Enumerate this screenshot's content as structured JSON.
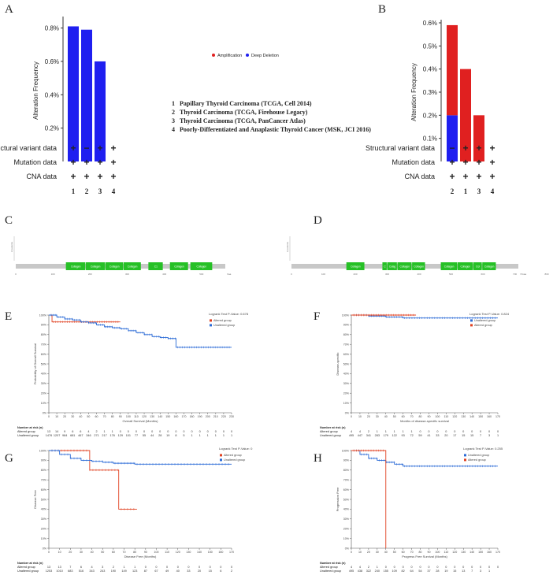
{
  "panel_labels": [
    "A",
    "B",
    "C",
    "D",
    "E",
    "F",
    "G",
    "H"
  ],
  "colors": {
    "amplification": "#e02020",
    "deep_deletion": "#1f1ff0",
    "altered": "#e04020",
    "unaltered": "#2a6ad6",
    "domain": "#26c026",
    "protein_bar": "#c8c8c8",
    "gridline": "#dddddd"
  },
  "legend_ab": {
    "amplification": "Amplification",
    "deep_deletion": "Deep Deletion"
  },
  "study_list": [
    {
      "num": "1",
      "name": "Papillary Thyroid Carcinoma (TCGA, Cell 2014)"
    },
    {
      "num": "2",
      "name": "Thyroid Carcinoma (TCGA, Firehouse Legacy)"
    },
    {
      "num": "3",
      "name": "Thyroid Carcinoma (TCGA, PanCancer Atlas)"
    },
    {
      "num": "4",
      "name": "Poorly-Differentiated and Anaplastic Thyroid Cancer (MSK, JCI 2016)"
    }
  ],
  "row_labels": [
    "Structural variant data",
    "Mutation data",
    "CNA data"
  ],
  "km_risk": {
    "title": "Number at risk (n)",
    "altered_label": "Altered group",
    "unaltered_label": "Unaltered group"
  },
  "chart_data": [
    {
      "id": "A",
      "type": "bar",
      "ylabel": "Alteration Frequency",
      "ylim": [
        0,
        0.85
      ],
      "yticks": [
        "0.2%",
        "0.4%",
        "0.6%",
        "0.8%"
      ],
      "categories": [
        "1",
        "2",
        "3",
        "4"
      ],
      "series": [
        {
          "name": "Amplification",
          "color": "#e02020",
          "values": [
            0,
            0,
            0,
            0
          ]
        },
        {
          "name": "Deep Deletion",
          "color": "#1f1ff0",
          "values": [
            0.81,
            0.79,
            0.6,
            0
          ]
        }
      ],
      "data_availability": [
        [
          "+",
          "−",
          "+",
          "+"
        ],
        [
          "+",
          "+",
          "+",
          "+"
        ],
        [
          "+",
          "+",
          "+",
          "+"
        ]
      ]
    },
    {
      "id": "B",
      "type": "bar",
      "ylabel": "Alteration Frequency",
      "ylim": [
        0,
        0.6
      ],
      "yticks": [
        "0.1%",
        "0.2%",
        "0.3%",
        "0.4%",
        "0.5%",
        "0.6%"
      ],
      "categories": [
        "2",
        "1",
        "3",
        "4"
      ],
      "series": [
        {
          "name": "Deep Deletion",
          "color": "#1f1ff0",
          "values": [
            0.2,
            0,
            0,
            0
          ]
        },
        {
          "name": "Amplification",
          "color": "#e02020",
          "values": [
            0.39,
            0.4,
            0.2,
            0
          ]
        }
      ],
      "data_availability": [
        [
          "−",
          "+",
          "+",
          "+"
        ],
        [
          "+",
          "+",
          "+",
          "+"
        ],
        [
          "+",
          "+",
          "+",
          "+"
        ]
      ]
    },
    {
      "id": "C",
      "type": "domain-map",
      "axis_ticks": [
        "0",
        "100",
        "200",
        "300",
        "400",
        "500"
      ],
      "axis_end_label": "Xaa",
      "length": 564,
      "ylabel": "# patients",
      "domains": [
        {
          "label": "Collagen",
          "start": 135,
          "end": 188
        },
        {
          "label": "Collagen",
          "start": 188,
          "end": 241
        },
        {
          "label": "Collagen",
          "start": 241,
          "end": 290
        },
        {
          "label": "Collagen",
          "start": 290,
          "end": 338
        },
        {
          "label": "C1",
          "start": 357,
          "end": 397
        },
        {
          "label": "Collagen",
          "start": 415,
          "end": 465
        },
        {
          "label": "Collagen",
          "start": 470,
          "end": 530
        }
      ]
    },
    {
      "id": "D",
      "type": "domain-map",
      "axis_ticks": [
        "0",
        "100",
        "200",
        "300",
        "400",
        "500",
        "600",
        "700",
        "800"
      ],
      "axis_end_label": "711aa",
      "length": 711,
      "ylabel": "# patients",
      "domains": [
        {
          "label": "Collagen",
          "start": 172,
          "end": 230
        },
        {
          "label": "C",
          "start": 285,
          "end": 300
        },
        {
          "label": "Colag",
          "start": 300,
          "end": 332
        },
        {
          "label": "Collagen",
          "start": 332,
          "end": 378
        },
        {
          "label": "Collagen",
          "start": 378,
          "end": 420
        },
        {
          "label": "Collagen",
          "start": 468,
          "end": 520
        },
        {
          "label": "Collagen",
          "start": 520,
          "end": 570
        },
        {
          "label": "Col",
          "start": 570,
          "end": 598
        },
        {
          "label": "Collagen",
          "start": 598,
          "end": 642
        }
      ]
    },
    {
      "id": "E",
      "type": "line",
      "xlabel": "Overall Survival (Months)",
      "ylabel": "Probability of Overall Survival",
      "p_value_text": "Logrank Test P-Value: 0.678",
      "xticks": [
        0,
        10,
        20,
        30,
        40,
        50,
        60,
        70,
        80,
        90,
        100,
        110,
        120,
        130,
        140,
        150,
        160,
        170,
        180,
        190,
        200,
        210,
        220,
        230
      ],
      "xlim": [
        0,
        230
      ],
      "yticks": [
        0,
        10,
        20,
        30,
        40,
        50,
        60,
        70,
        80,
        90,
        100
      ],
      "ylim": [
        0,
        100
      ],
      "series": [
        {
          "name": "Altered group",
          "color": "#e04020",
          "x": [
            0,
            4,
            90
          ],
          "y": [
            100,
            93,
            93
          ]
        },
        {
          "name": "Unaltered group",
          "color": "#2a6ad6",
          "x": [
            0,
            10,
            20,
            30,
            40,
            50,
            60,
            70,
            80,
            90,
            100,
            110,
            120,
            130,
            140,
            150,
            160,
            170,
            180,
            230
          ],
          "y": [
            100,
            98,
            96,
            95,
            93,
            92,
            90,
            88,
            87,
            86,
            84,
            82,
            80,
            78,
            77,
            76,
            67,
            67,
            67,
            67
          ]
        }
      ],
      "risk_x": [
        "0",
        "10",
        "20",
        "30",
        "40",
        "50",
        "60",
        "70",
        "80",
        "90",
        "100",
        "110",
        "120",
        "130",
        "140",
        "150",
        "160",
        "170",
        "180",
        "190",
        "200",
        "210",
        "220",
        "230"
      ],
      "risk_altered": [
        "13",
        "14",
        "9",
        "6",
        "6",
        "4",
        "2",
        "1",
        "1",
        "0",
        "0",
        "0",
        "0",
        "0",
        "0",
        "0",
        "0",
        "0",
        "0",
        "0",
        "0",
        "0",
        "0",
        "0"
      ],
      "risk_unaltered": [
        "1476",
        "1207",
        "984",
        "681",
        "467",
        "346",
        "271",
        "217",
        "176",
        "129",
        "101",
        "77",
        "55",
        "44",
        "28",
        "19",
        "8",
        "5",
        "1",
        "1",
        "1",
        "1",
        "1",
        "1"
      ]
    },
    {
      "id": "F",
      "type": "line",
      "xlabel": "Months of disease-specific survival",
      "ylabel": "Disease-specific",
      "p_value_text": "Logrank Test P-Value: 0.824",
      "xticks": [
        0,
        10,
        20,
        30,
        40,
        50,
        60,
        70,
        80,
        90,
        100,
        110,
        120,
        130,
        140,
        150,
        160,
        170
      ],
      "xlim": [
        0,
        170
      ],
      "yticks": [
        0,
        10,
        20,
        30,
        40,
        50,
        60,
        70,
        80,
        90,
        100
      ],
      "ylim": [
        0,
        100
      ],
      "series": [
        {
          "name": "Unaltered group",
          "color": "#2a6ad6",
          "x": [
            0,
            20,
            40,
            60,
            80,
            100,
            120,
            140,
            170
          ],
          "y": [
            100,
            99,
            98,
            97,
            97,
            97,
            97,
            97,
            97
          ]
        },
        {
          "name": "Altered group",
          "color": "#e04020",
          "x": [
            0,
            75
          ],
          "y": [
            100,
            100
          ]
        }
      ],
      "risk_x": [
        "0",
        "10",
        "20",
        "30",
        "40",
        "50",
        "60",
        "70",
        "80",
        "90",
        "100",
        "110",
        "120",
        "130",
        "140",
        "150",
        "160",
        "170"
      ],
      "risk_altered": [
        "4",
        "4",
        "2",
        "1",
        "1",
        "1",
        "1",
        "1",
        "0",
        "0",
        "0",
        "0",
        "0",
        "0",
        "0",
        "0",
        "0",
        "0"
      ],
      "risk_unaltered": [
        "495",
        "447",
        "341",
        "283",
        "179",
        "122",
        "93",
        "72",
        "59",
        "41",
        "33",
        "20",
        "17",
        "15",
        "15",
        "7",
        "3",
        "1"
      ]
    },
    {
      "id": "G",
      "type": "line",
      "xlabel": "Disease Free (Months)",
      "ylabel": "Disease Free",
      "p_value_text": "Logrank Test P-Value: 0",
      "xticks": [
        0,
        10,
        20,
        30,
        40,
        50,
        60,
        70,
        80,
        90,
        100,
        110,
        120,
        130,
        140,
        150,
        160,
        170
      ],
      "xlim": [
        0,
        170
      ],
      "yticks": [
        0,
        10,
        20,
        30,
        40,
        50,
        60,
        70,
        80,
        90,
        100
      ],
      "ylim": [
        0,
        100
      ],
      "series": [
        {
          "name": "Altered group",
          "color": "#e04020",
          "x": [
            0,
            38,
            38,
            65,
            65,
            82
          ],
          "y": [
            100,
            100,
            80,
            80,
            40,
            40
          ]
        },
        {
          "name": "Unaltered group",
          "color": "#2a6ad6",
          "x": [
            0,
            10,
            20,
            30,
            40,
            50,
            60,
            80,
            100,
            170
          ],
          "y": [
            100,
            96,
            92,
            90,
            89,
            88,
            87,
            86,
            86,
            86
          ]
        }
      ],
      "risk_x": [
        "0",
        "10",
        "20",
        "30",
        "40",
        "50",
        "60",
        "70",
        "80",
        "90",
        "100",
        "110",
        "120",
        "130",
        "140",
        "150",
        "160",
        "170"
      ],
      "risk_altered": [
        "13",
        "13",
        "7",
        "6",
        "4",
        "3",
        "2",
        "1",
        "1",
        "0",
        "0",
        "0",
        "0",
        "0",
        "0",
        "0",
        "0",
        "0"
      ],
      "risk_unaltered": [
        "1253",
        "1010",
        "683",
        "516",
        "343",
        "243",
        "190",
        "149",
        "123",
        "87",
        "67",
        "49",
        "40",
        "33",
        "20",
        "15",
        "6",
        "2"
      ]
    },
    {
      "id": "H",
      "type": "line",
      "xlabel": "Progress Free Survival (Months)",
      "ylabel": "Progression Free",
      "p_value_text": "Logrank Test P-Value: 0.255",
      "xticks": [
        0,
        10,
        20,
        30,
        40,
        50,
        60,
        70,
        80,
        90,
        100,
        110,
        120,
        130,
        140,
        150,
        160,
        170
      ],
      "xlim": [
        0,
        170
      ],
      "yticks": [
        0,
        10,
        20,
        30,
        40,
        50,
        60,
        70,
        80,
        90,
        100
      ],
      "ylim": [
        0,
        100
      ],
      "series": [
        {
          "name": "Unaltered group",
          "color": "#2a6ad6",
          "x": [
            0,
            10,
            20,
            30,
            40,
            50,
            60,
            80,
            100,
            170
          ],
          "y": [
            100,
            96,
            92,
            90,
            88,
            86,
            84,
            84,
            84,
            84
          ]
        },
        {
          "name": "Altered group",
          "color": "#e04020",
          "x": [
            0,
            40,
            40
          ],
          "y": [
            100,
            100,
            0
          ]
        }
      ],
      "risk_x": [
        "0",
        "10",
        "20",
        "30",
        "40",
        "50",
        "60",
        "70",
        "80",
        "90",
        "100",
        "110",
        "120",
        "130",
        "140",
        "150",
        "160",
        "170"
      ],
      "risk_altered": [
        "4",
        "4",
        "2",
        "1",
        "0",
        "0",
        "0",
        "0",
        "0",
        "0",
        "0",
        "0",
        "0",
        "0",
        "0",
        "0",
        "0",
        "0"
      ],
      "risk_unaltered": [
        "495",
        "438",
        "322",
        "240",
        "155",
        "109",
        "82",
        "64",
        "54",
        "37",
        "28",
        "19",
        "15",
        "13",
        "7",
        "3",
        "1",
        ""
      ]
    }
  ]
}
